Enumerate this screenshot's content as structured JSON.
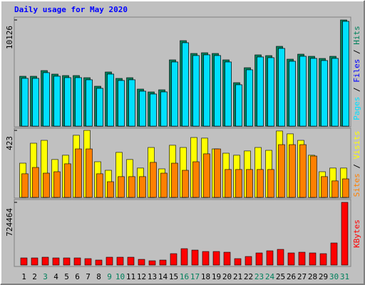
{
  "title": "Daily usage for May 2020",
  "chart_data": [
    {
      "type": "bar",
      "ylim": [
        0,
        10126
      ],
      "yticks": [
        10126
      ],
      "series": [
        {
          "name": "Hits",
          "color": "#00805c",
          "values": [
            4757,
            4757,
            5301,
            4961,
            4825,
            4825,
            4621,
            3806,
            5165,
            4553,
            4621,
            3534,
            3262,
            3466,
            6320,
            8155,
            6932,
            7000,
            6932,
            6320,
            4146,
            5573,
            6796,
            6728,
            7612,
            6388,
            6864,
            6660,
            6456,
            6660,
            10126
          ]
        },
        {
          "name": "Files",
          "color": "#0000ff",
          "values": [
            4553,
            4553,
            5097,
            4757,
            4621,
            4621,
            4417,
            3602,
            4961,
            4349,
            4417,
            3330,
            3058,
            3262,
            6116,
            7951,
            6728,
            6796,
            6728,
            6116,
            3942,
            5369,
            6592,
            6524,
            7408,
            6184,
            6660,
            6456,
            6252,
            6456,
            9990
          ]
        },
        {
          "name": "Pages",
          "color": "#00e0ff",
          "values": [
            4553,
            4553,
            5097,
            4757,
            4621,
            4621,
            4417,
            3602,
            4961,
            4349,
            4417,
            3330,
            3058,
            3262,
            6116,
            7951,
            6728,
            6796,
            6728,
            6116,
            3942,
            5369,
            6592,
            6524,
            7408,
            6184,
            6660,
            6456,
            6252,
            6456,
            9990
          ]
        }
      ]
    },
    {
      "type": "bar",
      "ylim": [
        0,
        423
      ],
      "yticks": [
        423
      ],
      "series": [
        {
          "name": "Visits",
          "color": "#ffff00",
          "values": [
            216,
            342,
            360,
            239,
            266,
            392,
            423,
            225,
            171,
            284,
            239,
            185,
            315,
            180,
            329,
            315,
            378,
            374,
            306,
            279,
            266,
            293,
            315,
            297,
            419,
            401,
            360,
            266,
            162,
            185,
            185
          ]
        },
        {
          "name": "Sites",
          "color": "#ff8000",
          "values": [
            149,
            189,
            153,
            162,
            212,
            306,
            306,
            149,
            99,
            131,
            131,
            131,
            221,
            153,
            216,
            171,
            225,
            275,
            306,
            176,
            176,
            176,
            176,
            176,
            333,
            333,
            333,
            261,
            131,
            104,
            117
          ]
        }
      ]
    },
    {
      "type": "bar",
      "ylim": [
        0,
        724464
      ],
      "yticks": [
        724464
      ],
      "categories": [
        "1",
        "2",
        "3",
        "4",
        "5",
        "6",
        "7",
        "8",
        "9",
        "10",
        "11",
        "12",
        "13",
        "14",
        "15",
        "16",
        "17",
        "18",
        "19",
        "20",
        "21",
        "22",
        "23",
        "24",
        "25",
        "26",
        "27",
        "28",
        "29",
        "30",
        "31"
      ],
      "category_colors": [
        "#000000",
        "#000000",
        "#00805c",
        "#000000",
        "#000000",
        "#000000",
        "#000000",
        "#000000",
        "#00805c",
        "#00805c",
        "#000000",
        "#000000",
        "#000000",
        "#000000",
        "#000000",
        "#00805c",
        "#00805c",
        "#000000",
        "#000000",
        "#000000",
        "#000000",
        "#000000",
        "#00805c",
        "#00805c",
        "#000000",
        "#000000",
        "#000000",
        "#000000",
        "#000000",
        "#00805c",
        "#00805c"
      ],
      "series": [
        {
          "name": "KBytes",
          "color": "#ff0000",
          "values": [
            82320,
            82320,
            90552,
            82320,
            82320,
            82320,
            74088,
            57624,
            90552,
            90552,
            90552,
            65856,
            49392,
            57624,
            131712,
            189336,
            172872,
            156408,
            156408,
            148176,
            74088,
            98784,
            139944,
            164640,
            181104,
            139944,
            148176,
            139944,
            131712,
            255192,
            724464
          ]
        }
      ]
    }
  ]
}
